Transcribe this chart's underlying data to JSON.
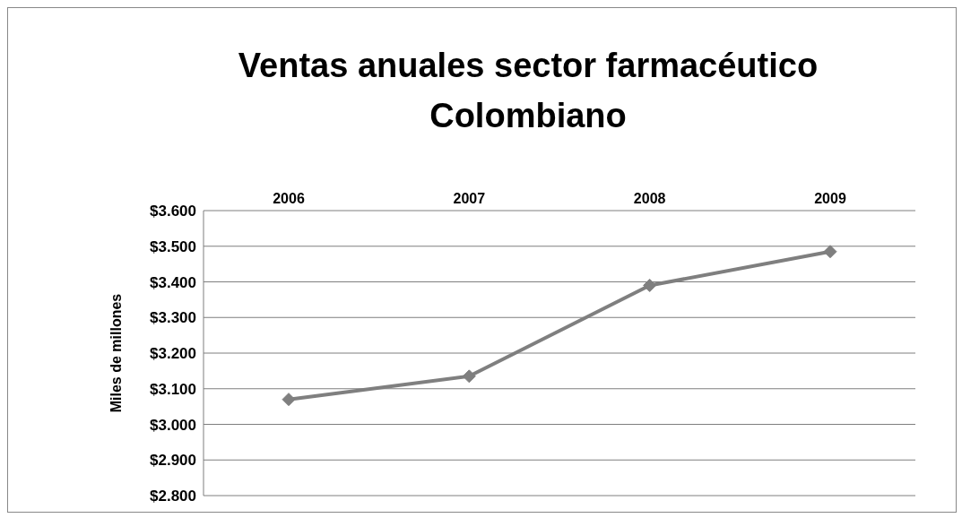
{
  "chart_data": {
    "type": "line",
    "title": "Ventas anuales sector farmacéutico Colombiano",
    "ylabel": "Miles de millones",
    "categories": [
      "2006",
      "2007",
      "2008",
      "2009"
    ],
    "series": [
      {
        "color": "#7f7f7f",
        "values": [
          3070,
          3135,
          3390,
          3485
        ]
      }
    ],
    "ylim": [
      2800,
      3600
    ],
    "yticks": [
      {
        "value": 2800,
        "label": "$2.800"
      },
      {
        "value": 2900,
        "label": "$2.900"
      },
      {
        "value": 3000,
        "label": "$3.000"
      },
      {
        "value": 3100,
        "label": "$3.100"
      },
      {
        "value": 3200,
        "label": "$3.200"
      },
      {
        "value": 3300,
        "label": "$3.300"
      },
      {
        "value": 3400,
        "label": "$3.400"
      },
      {
        "value": 3500,
        "label": "$3.500"
      },
      {
        "value": 3600,
        "label": "$3.600"
      }
    ],
    "grid": "y",
    "marker": "diamond",
    "line_style": "solid",
    "legend": false
  }
}
